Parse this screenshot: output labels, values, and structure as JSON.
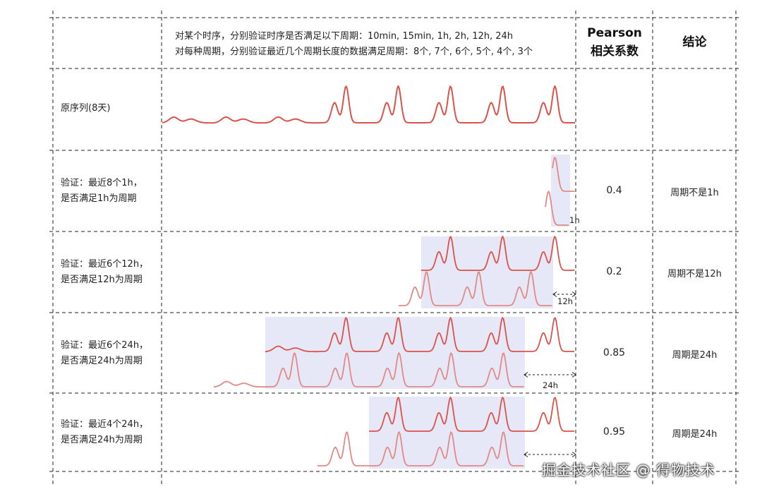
{
  "header": {
    "line1": "对某个时序，分别验证时序是否满足以下周期：10min, 15min, 1h, 2h, 12h, 24h",
    "line2": "对每种周期，分别验证最近几个周期长度的数据满足周期：8个, 7个, 6个, 5个, 4个, 3个",
    "pearson_line1": "Pearson",
    "pearson_line2": "相关系数",
    "conclusion": "结论"
  },
  "rows": [
    {
      "label": "原序列(8天)",
      "pearson": "",
      "conclusion": "",
      "period_label": ""
    },
    {
      "label_line1": "验证：最近8个1h，",
      "label_line2": "是否满足1h为周期",
      "pearson": "0.4",
      "conclusion": "周期不是1h",
      "period_label": "1h"
    },
    {
      "label_line1": "验证：最近6个12h，",
      "label_line2": "是否满足12h为周期",
      "pearson": "0.2",
      "conclusion": "周期不是12h",
      "period_label": "12h"
    },
    {
      "label_line1": "验证：最近6个24h，",
      "label_line2": "是否满足24h为周期",
      "pearson": "0.85",
      "conclusion": "周期是24h",
      "period_label": "24h"
    },
    {
      "label_line1": "验证：最近4个24h，",
      "label_line2": "是否满足24h为周期",
      "pearson": "0.95",
      "conclusion": "周期是24h",
      "period_label": ""
    }
  ],
  "colors": {
    "series": "#d9534a",
    "series_light": "#e08a85",
    "highlight": "#e6e8f7",
    "grid": "#222222"
  },
  "watermark": "掘金技术社区 @ 得物技术"
}
